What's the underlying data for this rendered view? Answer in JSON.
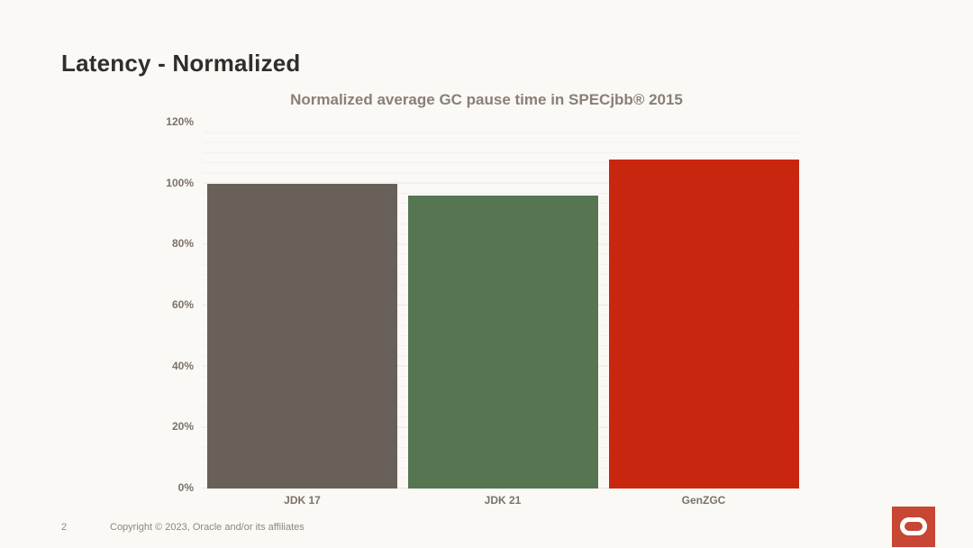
{
  "slide": {
    "title": "Latency - Normalized",
    "page_number": "2",
    "copyright": "Copyright © 2023, Oracle and/or its affiliates"
  },
  "chart_data": {
    "type": "bar",
    "title": "Normalized average GC pause time in SPECjbb® 2015",
    "categories": [
      "JDK 17",
      "JDK 21",
      "GenZGC"
    ],
    "values": [
      100,
      96,
      108
    ],
    "unit": "%",
    "xlabel": "",
    "ylabel": "",
    "ylim": [
      0,
      120
    ],
    "ytick_step": 20,
    "ytick_labels": [
      "0%",
      "20%",
      "40%",
      "60%",
      "80%",
      "100%",
      "120%"
    ],
    "grid": "horizontal major every 20% with faint minor lines",
    "legend_position": "none",
    "bar_colors": [
      "#696059",
      "#567652",
      "#c9260f"
    ]
  },
  "colors": {
    "background": "#fbf9f6",
    "slide_title_text": "#312d2a",
    "chart_title_text": "#897f76",
    "axis_text": "#7b7268",
    "gridline_major": "#e9e6e2",
    "gridline_minor": "#f3f1ee",
    "footer_text": "#8e867e",
    "logo_red": "#c74634"
  },
  "logo": {
    "icon": "oracle-logo"
  }
}
